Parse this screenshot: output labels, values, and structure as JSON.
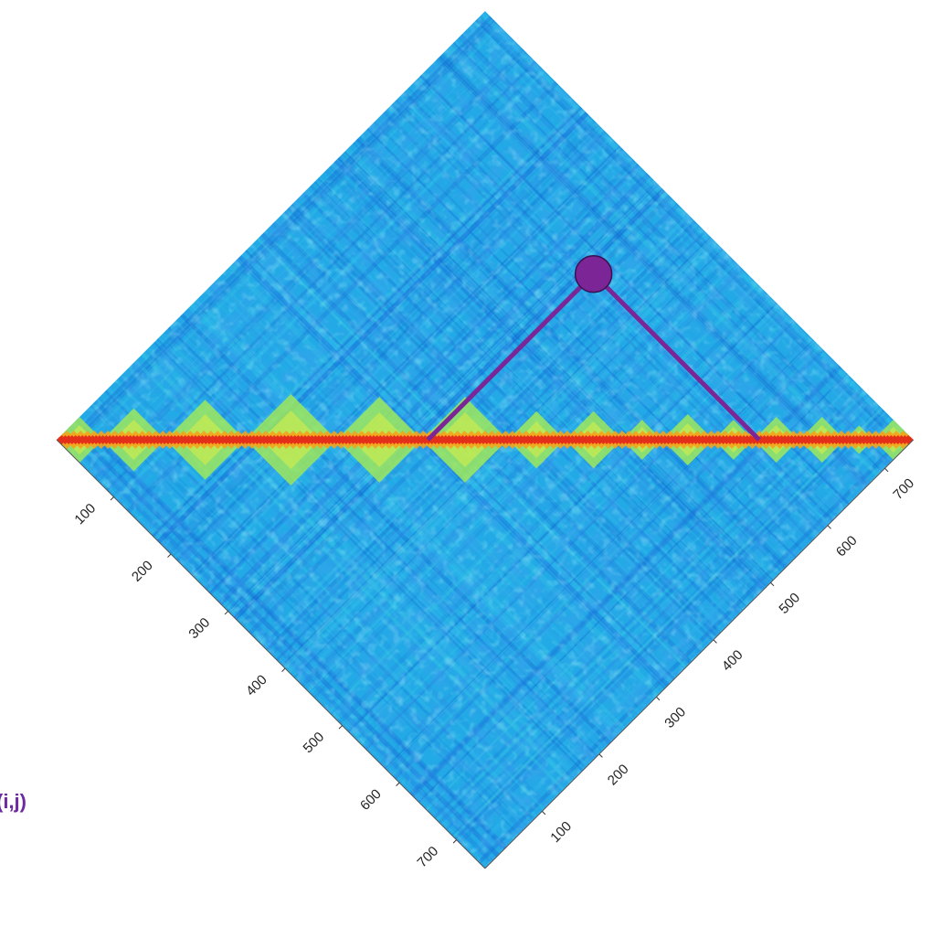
{
  "chart_data": {
    "type": "heatmap",
    "subtype": "rotated-square-matrix",
    "rotation_degrees": 45,
    "matrix_size": 750,
    "colormap": "jet",
    "colormap_stops": [
      "#0b44c8",
      "#1f8fe6",
      "#24b4ec",
      "#3bd0d9",
      "#8fe86a",
      "#e8ef3a",
      "#f6a21a",
      "#d6281a",
      "#8a0d0d"
    ],
    "background_color": "#22aae6",
    "diagonal_color": "#e42f1a",
    "domain_color": "#9ee85c",
    "diagonal_domains": [
      [
        0,
        40
      ],
      [
        40,
        95
      ],
      [
        95,
        165
      ],
      [
        165,
        245
      ],
      [
        245,
        320
      ],
      [
        320,
        395
      ],
      [
        395,
        445
      ],
      [
        445,
        495
      ],
      [
        495,
        530
      ],
      [
        530,
        575
      ],
      [
        575,
        610
      ],
      [
        610,
        650
      ],
      [
        650,
        690
      ],
      [
        690,
        715
      ],
      [
        715,
        750
      ]
    ],
    "left_axis": {
      "ticks": [
        100,
        200,
        300,
        400,
        500,
        600,
        700
      ],
      "range": [
        0,
        750
      ]
    },
    "right_axis": {
      "ticks": [
        100,
        200,
        300,
        400,
        500,
        600,
        700
      ],
      "range": [
        0,
        750
      ]
    },
    "annotation": {
      "type": "pair-interaction-marker",
      "i": 325,
      "j": 615,
      "color": "#7b2596"
    },
    "grid": false,
    "legend": "none"
  },
  "annotation_label": "(i,j)"
}
